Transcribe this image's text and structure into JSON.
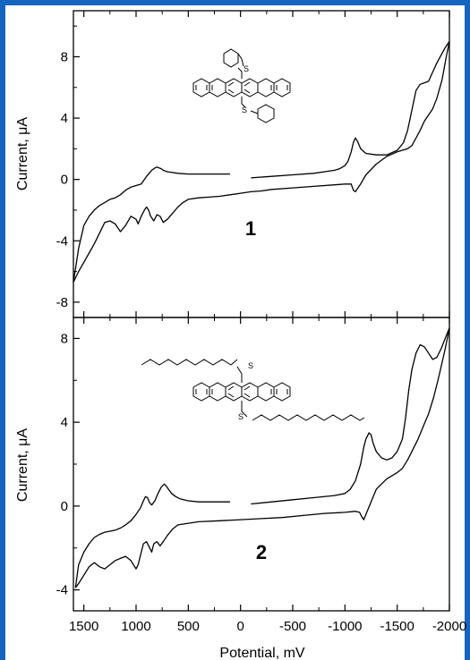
{
  "colors": {
    "frame": "#1565c0",
    "trace": "#000000"
  },
  "chart_data": [
    {
      "type": "line",
      "panel_label": "1",
      "ylabel": "Current, μA",
      "xlabel": "Potential, mV",
      "xlim": [
        1600,
        -2000
      ],
      "ylim": [
        -9,
        11
      ],
      "yticks": [
        -8,
        -4,
        0,
        4,
        8
      ],
      "ytick_labels": [
        "-8",
        "-4",
        "0",
        "4",
        "8"
      ],
      "structure": "dithioether-substituted pentacene with two phenyl groups",
      "atom_labels": [
        "S",
        "S"
      ],
      "series": [
        {
          "segment": "cathodic_sweep",
          "x": [
            -100,
            -300,
            -500,
            -700,
            -800,
            -900,
            -950,
            -1000,
            -1030,
            -1060,
            -1080,
            -1100,
            -1120,
            -1150,
            -1200,
            -1300,
            -1400,
            -1500,
            -1560,
            -1600,
            -1640,
            -1680,
            -1720,
            -1760,
            -1800,
            -1840,
            -1880,
            -1920,
            -1960,
            -2000
          ],
          "y": [
            0.1,
            0.2,
            0.3,
            0.4,
            0.5,
            0.6,
            0.7,
            0.9,
            1.2,
            1.8,
            2.4,
            2.7,
            2.5,
            2.0,
            1.7,
            1.6,
            1.6,
            1.9,
            2.4,
            3.2,
            4.5,
            5.8,
            6.2,
            6.3,
            6.4,
            7.0,
            7.6,
            8.1,
            8.6,
            9.0
          ]
        },
        {
          "segment": "anodic_return",
          "x": [
            -2000,
            -1970,
            -1930,
            -1880,
            -1840,
            -1800,
            -1760,
            -1720,
            -1680,
            -1640,
            -1600,
            -1500,
            -1400,
            -1300,
            -1200,
            -1150,
            -1100,
            -1080,
            -1060,
            -1040,
            -1000,
            -900,
            -700,
            -500,
            -300,
            -200,
            -100,
            0,
            100,
            200,
            300,
            400,
            500,
            550,
            600,
            650,
            700,
            740,
            770,
            800,
            830,
            860,
            880,
            900,
            920,
            950,
            980,
            1000,
            1050,
            1100,
            1150,
            1200,
            1250,
            1300,
            1350,
            1400,
            1450,
            1500,
            1550,
            1600
          ],
          "y": [
            9.0,
            8.0,
            6.5,
            5.3,
            4.6,
            4.2,
            3.8,
            3.2,
            2.7,
            2.2,
            2.0,
            1.8,
            1.5,
            1.0,
            0.3,
            -0.3,
            -0.8,
            -0.7,
            -0.3,
            -0.3,
            -0.3,
            -0.35,
            -0.45,
            -0.55,
            -0.65,
            -0.75,
            -0.8,
            -0.9,
            -1.0,
            -1.1,
            -1.15,
            -1.2,
            -1.3,
            -1.5,
            -1.8,
            -2.2,
            -2.6,
            -2.8,
            -2.4,
            -2.3,
            -2.7,
            -2.4,
            -2.0,
            -1.8,
            -2.0,
            -2.4,
            -2.9,
            -2.6,
            -2.4,
            -3.0,
            -3.4,
            -2.9,
            -2.7,
            -2.8,
            -3.5,
            -4.2,
            -4.8,
            -5.4,
            -6.0,
            -6.7
          ]
        },
        {
          "segment": "anodic_sweep",
          "x": [
            1600,
            1550,
            1500,
            1450,
            1400,
            1350,
            1300,
            1250,
            1200,
            1150,
            1100,
            1050,
            1000,
            950,
            900,
            850,
            820,
            800,
            780,
            760,
            740,
            720,
            700,
            650,
            600,
            500,
            400,
            300,
            200,
            100
          ],
          "y": [
            -6.7,
            -4.5,
            -3.0,
            -2.4,
            -2.0,
            -1.7,
            -1.5,
            -1.3,
            -1.2,
            -1.0,
            -0.7,
            -0.5,
            -0.4,
            -0.3,
            0.2,
            0.6,
            0.75,
            0.8,
            0.75,
            0.7,
            0.6,
            0.55,
            0.5,
            0.45,
            0.4,
            0.35,
            0.35,
            0.35,
            0.35,
            0.35
          ]
        }
      ]
    },
    {
      "type": "line",
      "panel_label": "2",
      "ylabel": "Current, μA",
      "xlabel": "Potential, mV",
      "xlim": [
        1600,
        -2000
      ],
      "ylim": [
        -5,
        9
      ],
      "xticks": [
        1500,
        1000,
        500,
        0,
        -500,
        -1000,
        -1500,
        -2000
      ],
      "xtick_labels": [
        "1500",
        "1000",
        "500",
        "0",
        "-500",
        "-1000",
        "-1500",
        "-2000"
      ],
      "yticks": [
        -4,
        0,
        4,
        8
      ],
      "ytick_labels": [
        "-4",
        "0",
        "4",
        "8"
      ],
      "structure": "dithioether-substituted pentacene with two decyl chains",
      "atom_labels": [
        "S",
        "S"
      ],
      "series": [
        {
          "segment": "cathodic_sweep",
          "x": [
            -100,
            -300,
            -500,
            -700,
            -900,
            -1000,
            -1050,
            -1100,
            -1150,
            -1180,
            -1200,
            -1230,
            -1250,
            -1270,
            -1300,
            -1350,
            -1400,
            -1450,
            -1500,
            -1550,
            -1580,
            -1610,
            -1640,
            -1680,
            -1720,
            -1760,
            -1800,
            -1840,
            -1880,
            -1920,
            -1960,
            -2000
          ],
          "y": [
            0.1,
            0.2,
            0.3,
            0.4,
            0.5,
            0.6,
            0.8,
            1.2,
            2.0,
            2.8,
            3.2,
            3.5,
            3.4,
            3.0,
            2.6,
            2.3,
            2.2,
            2.3,
            2.6,
            3.2,
            4.2,
            5.5,
            6.5,
            7.3,
            7.7,
            7.6,
            7.3,
            7.0,
            7.1,
            7.5,
            8.0,
            8.5
          ]
        },
        {
          "segment": "anodic_return",
          "x": [
            -2000,
            -1960,
            -1900,
            -1850,
            -1800,
            -1750,
            -1700,
            -1650,
            -1600,
            -1550,
            -1500,
            -1400,
            -1300,
            -1250,
            -1200,
            -1180,
            -1160,
            -1140,
            -1100,
            -1000,
            -800,
            -600,
            -400,
            -200,
            0,
            200,
            400,
            600,
            650,
            700,
            740,
            770,
            800,
            830,
            850,
            870,
            900,
            930,
            950,
            980,
            1000,
            1050,
            1100,
            1150,
            1200,
            1250,
            1300,
            1350,
            1400,
            1450,
            1500,
            1550,
            1580
          ],
          "y": [
            8.5,
            7.5,
            6.2,
            5.2,
            4.4,
            3.8,
            3.2,
            2.7,
            2.2,
            1.8,
            1.6,
            1.3,
            0.8,
            0.2,
            -0.4,
            -0.65,
            -0.5,
            -0.3,
            -0.25,
            -0.3,
            -0.35,
            -0.45,
            -0.55,
            -0.6,
            -0.65,
            -0.7,
            -0.75,
            -0.9,
            -1.1,
            -1.4,
            -1.7,
            -1.9,
            -1.7,
            -1.8,
            -2.2,
            -2.0,
            -1.7,
            -1.8,
            -2.2,
            -2.8,
            -3.0,
            -2.6,
            -2.4,
            -2.5,
            -2.6,
            -2.8,
            -3.0,
            -2.9,
            -2.7,
            -2.9,
            -3.3,
            -3.7,
            -3.9
          ]
        },
        {
          "segment": "anodic_sweep",
          "x": [
            1580,
            1550,
            1500,
            1450,
            1400,
            1350,
            1300,
            1250,
            1200,
            1150,
            1100,
            1050,
            1000,
            960,
            930,
            910,
            890,
            870,
            850,
            820,
            790,
            760,
            730,
            710,
            690,
            660,
            620,
            580,
            500,
            400,
            300,
            200,
            100
          ],
          "y": [
            -3.9,
            -2.8,
            -2.2,
            -1.8,
            -1.5,
            -1.35,
            -1.25,
            -1.2,
            -1.15,
            -1.05,
            -0.9,
            -0.7,
            -0.4,
            -0.1,
            0.25,
            0.45,
            0.4,
            0.15,
            0.05,
            0.25,
            0.6,
            0.9,
            1.05,
            0.95,
            0.8,
            0.6,
            0.45,
            0.35,
            0.25,
            0.2,
            0.2,
            0.2,
            0.2
          ]
        }
      ]
    }
  ]
}
